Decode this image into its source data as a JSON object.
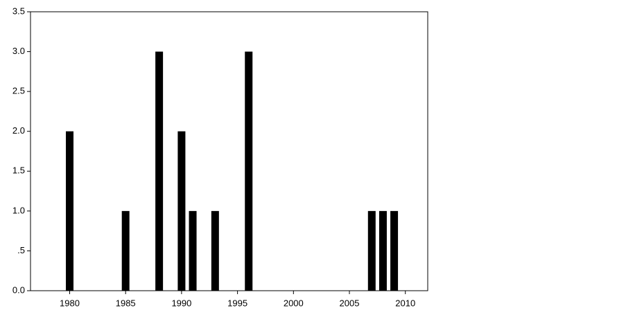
{
  "chart_data": {
    "type": "bar",
    "x": [
      1980,
      1985,
      1988,
      1990,
      1991,
      1993,
      1996,
      2007,
      2008,
      2009
    ],
    "values": [
      2,
      1,
      3,
      2,
      1,
      1,
      3,
      1,
      1,
      1
    ],
    "color": "#000000",
    "xlim": [
      1976.5,
      2012
    ],
    "xticks": [
      1980,
      1985,
      1990,
      1995,
      2000,
      2005,
      2010
    ],
    "ylim": [
      0,
      3.5
    ],
    "yticks": [
      {
        "value": 0,
        "label": "0.0"
      },
      {
        "value": 0.5,
        "label": ".5"
      },
      {
        "value": 1,
        "label": "1.0"
      },
      {
        "value": 1.5,
        "label": "1.5"
      },
      {
        "value": 2,
        "label": "2.0"
      },
      {
        "value": 2.5,
        "label": "2.5"
      },
      {
        "value": 3,
        "label": "3.0"
      },
      {
        "value": 3.5,
        "label": "3.5"
      }
    ],
    "grid": false
  }
}
